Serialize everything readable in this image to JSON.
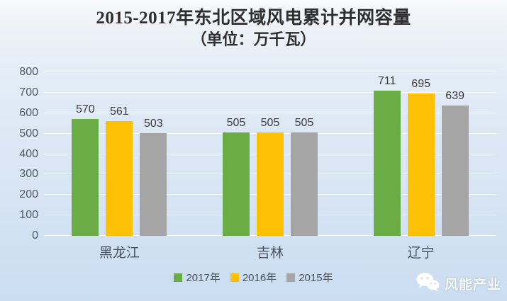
{
  "title": {
    "line1": "2015-2017年东北区域风电累计并网容量",
    "line2": "（单位：万千瓦）"
  },
  "watermark": {
    "icon": "wechat-icon",
    "text": "风能产业"
  },
  "colors": {
    "series_2017": "#6aad47",
    "series_2016": "#fcc105",
    "series_2015": "#a5a5a5",
    "background_top": "#f8fafc",
    "background_bottom": "#cbddf2",
    "gridline": "#ffffff",
    "axis_text": "#4e5862",
    "bar_label_text": "#3b3b3b",
    "title_text": "#2e2e2e"
  },
  "chart_data": {
    "type": "bar",
    "title": "2015-2017年东北区域风电累计并网容量",
    "subtitle": "（单位：万千瓦）",
    "xlabel": "",
    "ylabel": "",
    "categories": [
      "黑龙江",
      "吉林",
      "辽宁"
    ],
    "series": [
      {
        "name": "2017年",
        "color": "#6aad47",
        "values": [
          570,
          505,
          711
        ]
      },
      {
        "name": "2016年",
        "color": "#fcc105",
        "values": [
          561,
          505,
          695
        ]
      },
      {
        "name": "2015年",
        "color": "#a5a5a5",
        "values": [
          503,
          505,
          639
        ]
      }
    ],
    "ylim": [
      0,
      800
    ],
    "yticks": [
      0,
      100,
      200,
      300,
      400,
      500,
      600,
      700,
      800
    ],
    "grid": true,
    "legend_position": "bottom",
    "data_labels": true
  }
}
